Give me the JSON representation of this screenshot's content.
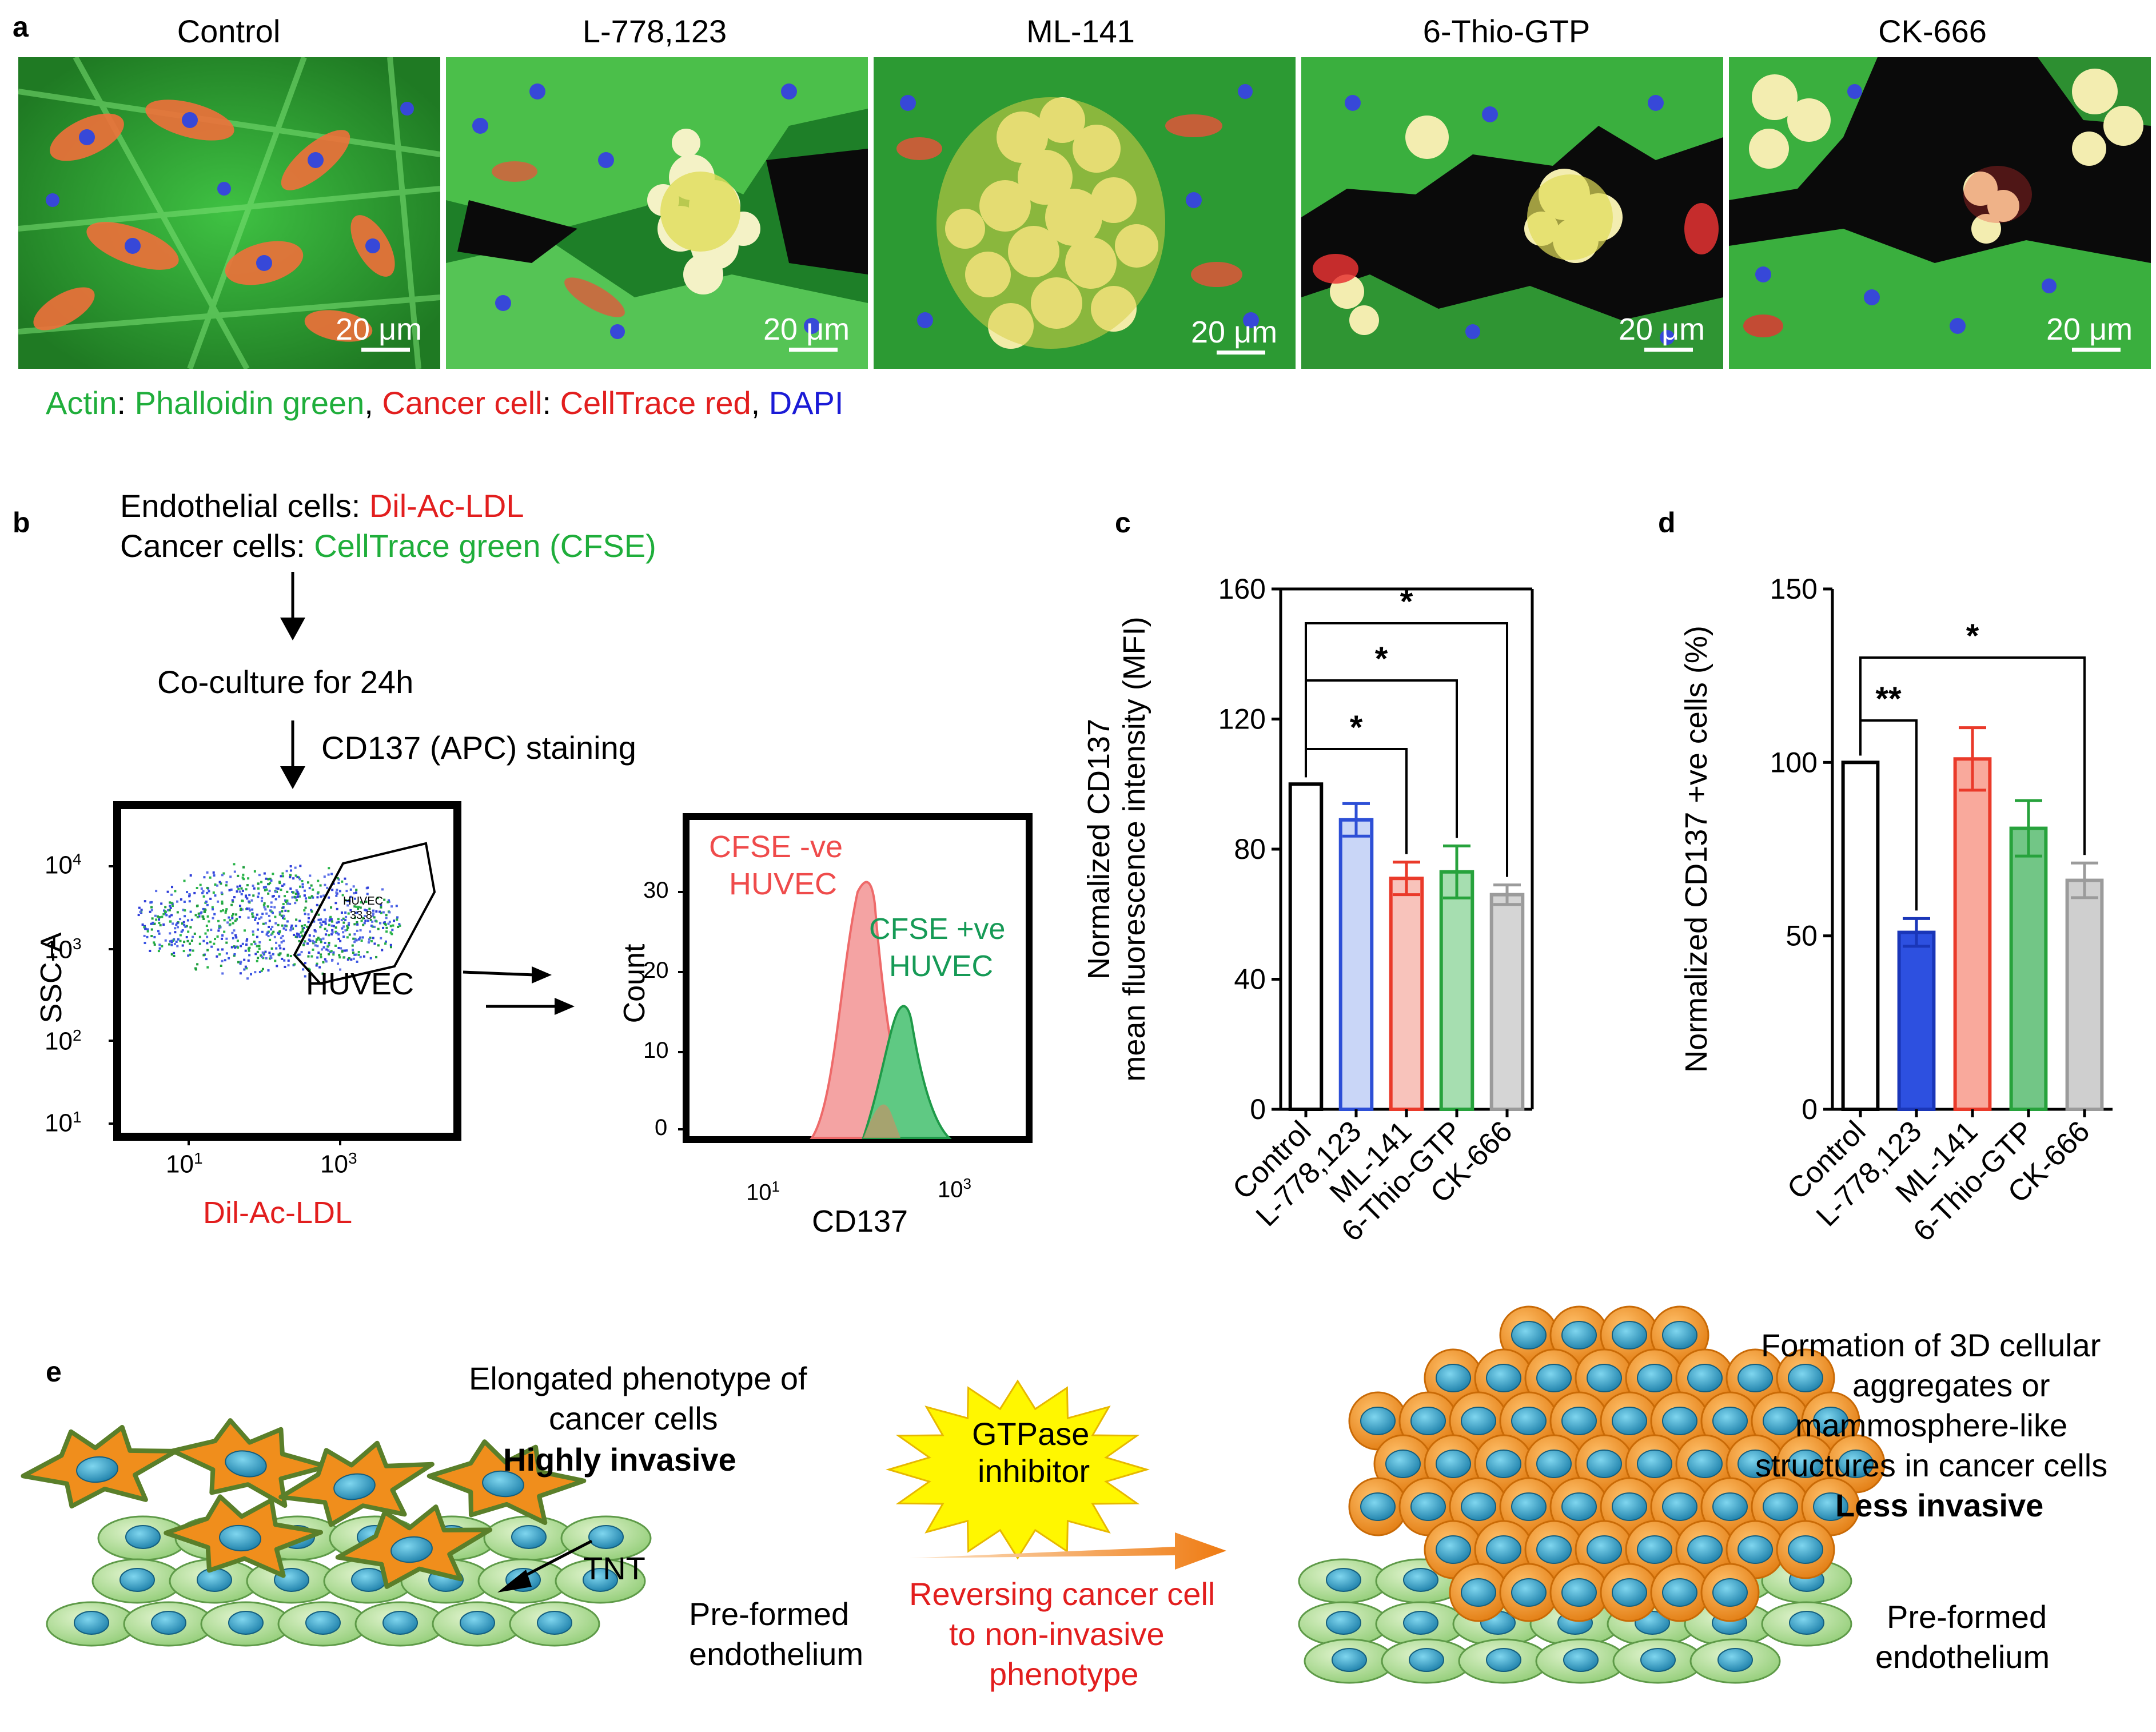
{
  "panel_a": {
    "label": "a",
    "titles": [
      "Control",
      "L-778,123",
      "ML-141",
      "6-Thio-GTP",
      "CK-666"
    ],
    "scale_bar": "20 μm",
    "legend": {
      "p1": "Actin",
      "p2": ": ",
      "p3": "Phalloidin green",
      "p4": ", ",
      "p5": "Cancer cell",
      "p6": ": ",
      "p7": "CellTrace red",
      "p8": ", ",
      "p9": "DAPI"
    }
  },
  "panel_b": {
    "label": "b",
    "line1_prefix": "Endothelial cells: ",
    "line1_colored": "Dil-Ac-LDL",
    "line2_prefix": "Cancer cells: ",
    "line2_colored": "CellTrace green (CFSE)",
    "step1": "Co-culture for 24h",
    "step2": "CD137 (APC) staining",
    "scatter": {
      "ylabel": "SSC-A",
      "xlabel": "Dil-Ac-LDL",
      "yticks": [
        "10",
        "10",
        "10",
        "10"
      ],
      "yexp": [
        "4",
        "3",
        "2",
        "1"
      ],
      "xticks": [
        "10",
        "10"
      ],
      "xexp": [
        "1",
        "3"
      ],
      "gate_label": "HUVEC",
      "gate_inner": "HUVEC",
      "gate_value": "33.8"
    },
    "histogram": {
      "ylabel": "Count",
      "xlabel": "CD137",
      "yticks": [
        "30",
        "20",
        "10",
        "0"
      ],
      "xticks": [
        "10",
        "10"
      ],
      "xexp": [
        "1",
        "3"
      ],
      "neg_label1": "CFSE -ve",
      "neg_label2": "HUVEC",
      "pos_label1": "CFSE +ve",
      "pos_label2": "HUVEC"
    }
  },
  "panel_c_label": "c",
  "panel_d_label": "d",
  "panel_e": {
    "label": "e",
    "left_title1": "Elongated phenotype of",
    "left_title2": "cancer cells",
    "left_title3": "Highly invasive",
    "tnt": "TNT",
    "left_endo1": "Pre-formed",
    "left_endo2": "endothelium",
    "burst1": "GTPase",
    "burst2": "inhibitor",
    "rev1": "Reversing cancer cell",
    "rev2": "to non-invasive",
    "rev3": "phenotype",
    "right_title1": "Formation of 3D cellular",
    "right_title2": "aggregates or",
    "right_title3": "mammosphere-like",
    "right_title4": "structures in cancer cells",
    "right_title5": "Less invasive",
    "right_endo1": "Pre-formed",
    "right_endo2": "endothelium"
  },
  "chart_data": [
    {
      "type": "bar",
      "title": "",
      "ylabel": "Normalized CD137 mean fluorescence intensity (MFI)",
      "ylabel_line1": "Normalized CD137",
      "ylabel_line2": "mean fluorescence intensity (MFI)",
      "categories": [
        "Control",
        "L-778,123",
        "ML-141",
        "6-Thio-GTP",
        "CK-666"
      ],
      "values": [
        100,
        89,
        71,
        73,
        66
      ],
      "errors": [
        0,
        5,
        5,
        8,
        3
      ],
      "colors": [
        "#ffffff",
        "#c9d6f7",
        "#f8c3bb",
        "#a6deb0",
        "#d5d5d5"
      ],
      "edges": [
        "#000000",
        "#2d4fd6",
        "#ea3a2a",
        "#27a23c",
        "#9b9b9b"
      ],
      "ylim": [
        0,
        160
      ],
      "yticks": [
        0,
        40,
        80,
        120,
        160
      ],
      "significance": [
        {
          "from": "Control",
          "to": "ML-141",
          "label": "*"
        },
        {
          "from": "Control",
          "to": "6-Thio-GTP",
          "label": "*"
        },
        {
          "from": "Control",
          "to": "CK-666",
          "label": "*"
        }
      ]
    },
    {
      "type": "bar",
      "title": "",
      "ylabel": "Normalized CD137 +ve cells (%)",
      "categories": [
        "Control",
        "L-778,123",
        "ML-141",
        "6-Thio-GTP",
        "CK-666"
      ],
      "values": [
        100,
        51,
        101,
        81,
        66
      ],
      "errors": [
        0,
        4,
        9,
        8,
        5
      ],
      "colors": [
        "#ffffff",
        "#2d50e0",
        "#f9a99c",
        "#72c686",
        "#cfcfcf"
      ],
      "edges": [
        "#000000",
        "#1a36b8",
        "#ea3a2a",
        "#27a23c",
        "#9b9b9b"
      ],
      "ylim": [
        0,
        150
      ],
      "yticks": [
        0,
        50,
        100,
        150
      ],
      "significance": [
        {
          "from": "Control",
          "to": "L-778,123",
          "label": "**"
        },
        {
          "from": "Control",
          "to": "CK-666",
          "label": "*"
        }
      ]
    }
  ]
}
